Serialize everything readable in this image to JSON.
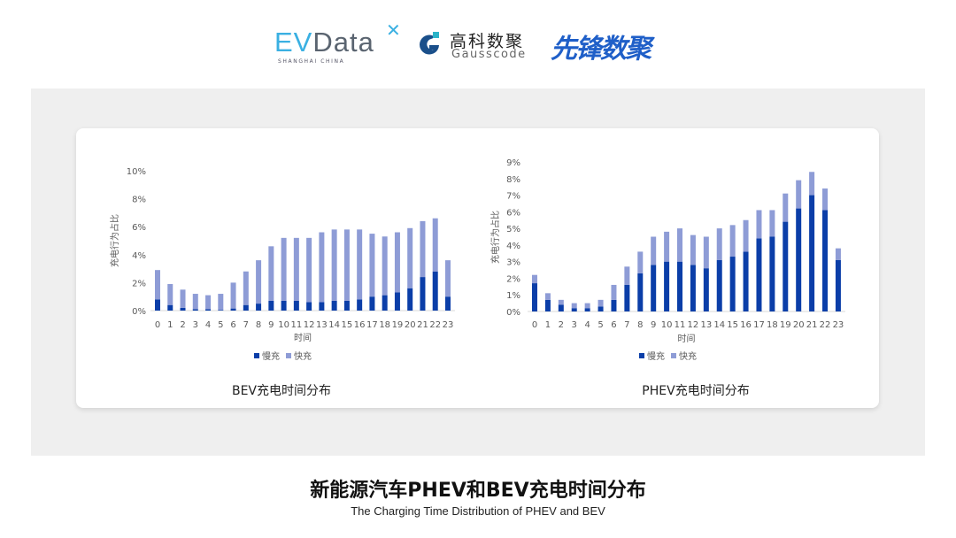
{
  "logos": {
    "evdata": {
      "ev": "EV",
      "rest": "Data",
      "sub": "SHANGHAI CHINA"
    },
    "gausscode": {
      "cn": "高科数聚",
      "en": "Gausscode"
    },
    "xianfeng": "先锋数聚"
  },
  "colors": {
    "slow": "#0b3ea8",
    "fast": "#8e9cd6",
    "panel": "#efefef"
  },
  "chart_data": [
    {
      "type": "bar",
      "stacked": true,
      "title": "BEV充电时间分布",
      "xlabel": "时间",
      "ylabel": "充电行为占比",
      "categories": [
        "0",
        "1",
        "2",
        "3",
        "4",
        "5",
        "6",
        "7",
        "8",
        "9",
        "10",
        "11",
        "12",
        "13",
        "14",
        "15",
        "16",
        "17",
        "18",
        "19",
        "20",
        "21",
        "22",
        "23"
      ],
      "yticks": [
        "0%",
        "2%",
        "4%",
        "6%",
        "8%",
        "10%"
      ],
      "ylim": [
        0,
        10
      ],
      "legend_position": "bottom",
      "series": [
        {
          "name": "慢充",
          "values": [
            0.8,
            0.4,
            0.2,
            0.1,
            0.1,
            0.05,
            0.15,
            0.4,
            0.5,
            0.7,
            0.7,
            0.7,
            0.6,
            0.6,
            0.7,
            0.7,
            0.8,
            1.0,
            1.1,
            1.3,
            1.6,
            2.4,
            2.8,
            1.0
          ]
        },
        {
          "name": "快充",
          "values": [
            2.1,
            1.5,
            1.3,
            1.1,
            1.0,
            1.15,
            1.85,
            2.4,
            3.1,
            3.9,
            4.5,
            4.5,
            4.6,
            5.0,
            5.1,
            5.1,
            5.0,
            4.5,
            4.2,
            4.3,
            4.3,
            4.0,
            3.8,
            2.6
          ]
        }
      ]
    },
    {
      "type": "bar",
      "stacked": true,
      "title": "PHEV充电时间分布",
      "xlabel": "时间",
      "ylabel": "充电行为占比",
      "categories": [
        "0",
        "1",
        "2",
        "3",
        "4",
        "5",
        "6",
        "7",
        "8",
        "9",
        "10",
        "11",
        "12",
        "13",
        "14",
        "15",
        "16",
        "17",
        "18",
        "19",
        "20",
        "21",
        "22",
        "23"
      ],
      "yticks": [
        "0%",
        "1%",
        "2%",
        "3%",
        "4%",
        "5%",
        "6%",
        "7%",
        "8%",
        "9%"
      ],
      "ylim": [
        0,
        9
      ],
      "legend_position": "bottom",
      "series": [
        {
          "name": "慢充",
          "values": [
            1.7,
            0.7,
            0.4,
            0.2,
            0.2,
            0.3,
            0.7,
            1.6,
            2.3,
            2.8,
            3.0,
            3.0,
            2.8,
            2.6,
            3.1,
            3.3,
            3.6,
            4.4,
            4.5,
            5.4,
            6.2,
            7.0,
            6.1,
            3.1
          ]
        },
        {
          "name": "快充",
          "values": [
            0.5,
            0.4,
            0.3,
            0.3,
            0.3,
            0.4,
            0.9,
            1.1,
            1.3,
            1.7,
            1.8,
            2.0,
            1.8,
            1.9,
            1.9,
            1.9,
            1.9,
            1.7,
            1.6,
            1.7,
            1.7,
            1.4,
            1.3,
            0.7
          ]
        }
      ]
    }
  ],
  "footer": {
    "title": "新能源汽车PHEV和BEV充电时间分布",
    "subtitle": "The Charging Time Distribution of PHEV and BEV"
  }
}
